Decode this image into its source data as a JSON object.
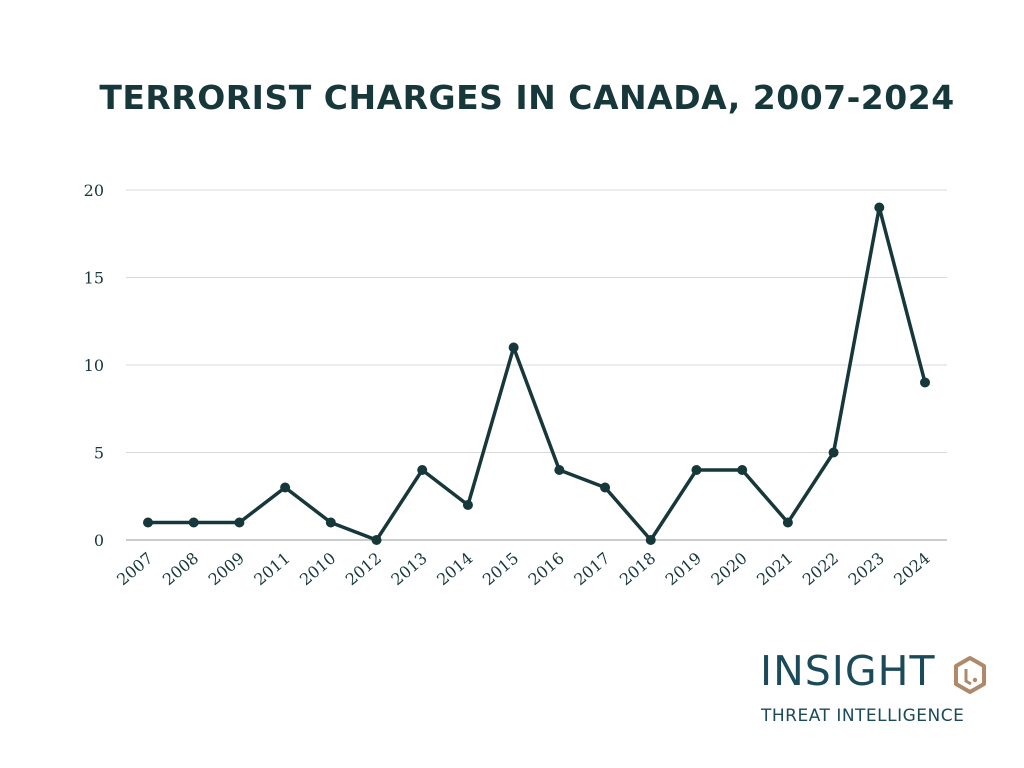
{
  "chart_data": {
    "type": "line",
    "title": "TERRORIST CHARGES IN CANADA, 2007-2024",
    "categories": [
      "2007",
      "2008",
      "2009",
      "2011",
      "2010",
      "2012",
      "2013",
      "2014",
      "2015",
      "2016",
      "2017",
      "2018",
      "2019",
      "2020",
      "2021",
      "2022",
      "2023",
      "2024"
    ],
    "series": [
      {
        "values": [
          1,
          1,
          1,
          3,
          1,
          0,
          4,
          2,
          11,
          4,
          3,
          0,
          4,
          4,
          1,
          5,
          19,
          9
        ]
      }
    ],
    "ylim": [
      0,
      20
    ],
    "yticks": [
      0,
      5,
      10,
      15,
      20
    ],
    "grid": true,
    "line_color": "#17383b"
  },
  "logo": {
    "word": "INSIGHT",
    "subtitle": "THREAT INTELLIGENCE",
    "text_color": "#1b4a5a",
    "mark_color": "#b0896a"
  }
}
